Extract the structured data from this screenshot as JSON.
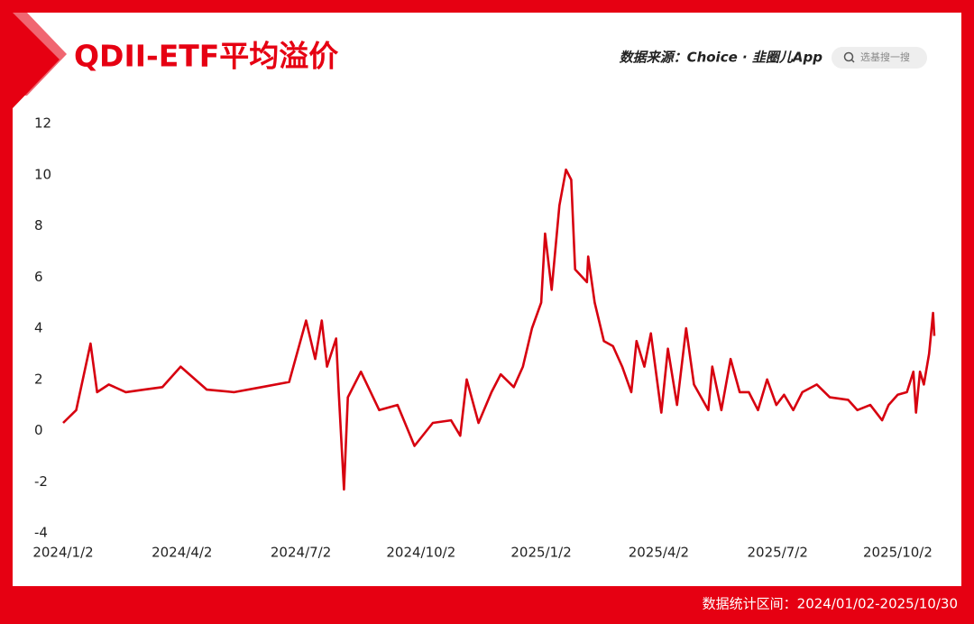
{
  "chart_data": {
    "type": "line",
    "title": "QDII-ETF平均溢价",
    "source": "数据来源：Choice · 韭圈儿App",
    "search_placeholder": "选基搜一搜",
    "footer": "数据统计区间：2024/01/02-2025/10/30",
    "x": [
      "2024/1/2",
      "2024/1/12",
      "2024/1/23",
      "2024/1/28",
      "2024/2/6",
      "2024/2/19",
      "2024/3/4",
      "2024/3/18",
      "2024/4/1",
      "2024/4/21",
      "2024/5/12",
      "2024/6/2",
      "2024/6/23",
      "2024/7/6",
      "2024/7/13",
      "2024/7/18",
      "2024/7/22",
      "2024/7/29",
      "2024/7/31",
      "2024/8/4",
      "2024/8/7",
      "2024/8/17",
      "2024/8/31",
      "2024/9/14",
      "2024/9/27",
      "2024/10/11",
      "2024/10/25",
      "2024/11/1",
      "2024/11/6",
      "2024/11/15",
      "2024/11/25",
      "2024/12/2",
      "2024/12/12",
      "2024/12/19",
      "2024/12/26",
      "2025/1/2",
      "2025/1/5",
      "2025/1/10",
      "2025/1/16",
      "2025/1/21",
      "2025/1/25",
      "2025/1/28",
      "2025/2/6",
      "2025/2/7",
      "2025/2/12",
      "2025/2/19",
      "2025/2/26",
      "2025/3/5",
      "2025/3/12",
      "2025/3/16",
      "2025/3/22",
      "2025/3/27",
      "2025/4/4",
      "2025/4/9",
      "2025/4/16",
      "2025/4/23",
      "2025/4/29",
      "2025/5/10",
      "2025/5/13",
      "2025/5/20",
      "2025/5/27",
      "2025/6/3",
      "2025/6/10",
      "2025/6/17",
      "2025/6/24",
      "2025/7/1",
      "2025/7/7",
      "2025/7/14",
      "2025/7/21",
      "2025/8/1",
      "2025/8/11",
      "2025/8/25",
      "2025/9/1",
      "2025/9/11",
      "2025/9/20",
      "2025/9/25",
      "2025/10/2",
      "2025/10/9",
      "2025/10/14",
      "2025/10/16",
      "2025/10/19",
      "2025/10/22",
      "2025/10/26",
      "2025/10/29",
      "2025/10/30"
    ],
    "series": [
      {
        "name": "QDII-ETF平均溢价",
        "color": "#d7000f",
        "values": [
          0.3,
          0.8,
          3.4,
          1.5,
          1.8,
          1.5,
          1.6,
          1.7,
          2.5,
          1.6,
          1.5,
          1.7,
          1.9,
          4.3,
          2.8,
          4.3,
          2.5,
          3.6,
          1.5,
          -2.3,
          1.3,
          2.3,
          0.8,
          1.0,
          -0.6,
          0.3,
          0.4,
          -0.2,
          2.0,
          0.3,
          1.5,
          2.2,
          1.7,
          2.5,
          4.0,
          5.0,
          7.7,
          5.5,
          8.8,
          10.2,
          9.8,
          6.3,
          5.8,
          6.8,
          5.0,
          3.5,
          3.3,
          2.5,
          1.5,
          3.5,
          2.5,
          3.8,
          0.7,
          3.2,
          1.0,
          4.0,
          1.8,
          0.8,
          2.5,
          0.8,
          2.8,
          1.5,
          1.5,
          0.8,
          2.0,
          1.0,
          1.4,
          0.8,
          1.5,
          1.8,
          1.3,
          1.2,
          0.8,
          1.0,
          0.4,
          1.0,
          1.4,
          1.5,
          2.3,
          0.7,
          2.3,
          1.8,
          3.0,
          4.6,
          3.7
        ]
      }
    ],
    "xlim": [
      "2024/1/2",
      "2025/10/30"
    ],
    "xticks": [
      "2024/1/2",
      "2024/4/2",
      "2024/7/2",
      "2024/10/2",
      "2025/1/2",
      "2025/4/2",
      "2025/7/2",
      "2025/10/2"
    ],
    "ylim": [
      -4,
      12
    ],
    "yticks": [
      -4,
      -2,
      0,
      2,
      4,
      6,
      8,
      10,
      12
    ],
    "grid": false
  }
}
